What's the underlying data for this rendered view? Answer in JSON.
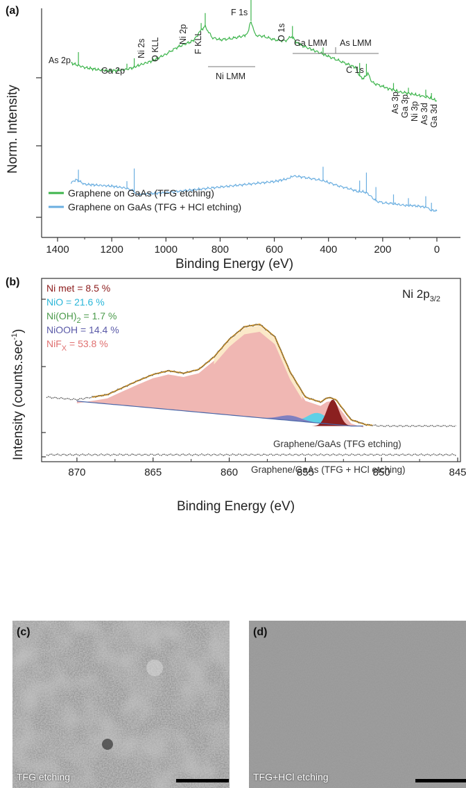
{
  "panels": {
    "a": {
      "label": "(a)",
      "ylabel": "Norm. Intensity",
      "xlabel": "Binding Energy (eV)",
      "peaks": [
        "As 2p",
        "Ga 2p",
        "Ni 2s",
        "O KLL",
        "Ni 2p",
        "F KLL",
        "F 1s",
        "O 1s",
        "Ga LMM",
        "As LMM",
        "Ni LMM",
        "C 1s",
        "As 3p",
        "Ga 3p",
        "Ni 3p",
        "As 3d",
        "Ga 3d"
      ],
      "legend": [
        "Graphene on GaAs (TFG etching)",
        "Graphene on GaAs (TFG + HCl etching)"
      ]
    },
    "b": {
      "label": "(b)",
      "ylabel": "Intensity (counts.sec",
      "ylabel_sup": "-1",
      "ylabel_end": ")",
      "xlabel": "Binding Energy (eV)",
      "region_main": "Ni 2p",
      "region_sub": "3/2",
      "components": [
        {
          "pre": "Ni met = 8.5 %",
          "sub": "",
          "post": "",
          "color": "#8b1a1a"
        },
        {
          "pre": "NiO = 21.6 %",
          "sub": "",
          "post": "",
          "color": "#29b6d8"
        },
        {
          "pre": "Ni(OH)",
          "sub": "2",
          "post": " = 1.7 %",
          "color": "#4a9a4a"
        },
        {
          "pre": "NiOOH  = 14.4 %",
          "sub": "",
          "post": "",
          "color": "#5a5aa8"
        },
        {
          "pre": "NiF",
          "sub": "X",
          "post": " = 53.8 %",
          "color": "#e07070"
        }
      ],
      "samples": [
        "Graphene/GaAs (TFG etching)",
        "Graphene/GaAs (TFG + HCl etching)"
      ]
    },
    "c": {
      "label": "(c)",
      "caption": "TFG etching"
    },
    "d": {
      "label": "(d)",
      "caption": "TFG+HCl etching"
    }
  },
  "chart_data": [
    {
      "type": "line",
      "xlabel": "Binding Energy (eV)",
      "ylabel": "Norm. Intensity",
      "xlim": [
        1400,
        0
      ],
      "xticks": [
        1400,
        1200,
        1000,
        800,
        600,
        400,
        200,
        0
      ],
      "colors": {
        "tfg": "#3cb44b",
        "hcl": "#6aaee0"
      },
      "series": [
        {
          "name": "Graphene on GaAs (TFG etching)",
          "x": [
            1350,
            1300,
            1250,
            1200,
            1150,
            1120,
            1100,
            1050,
            1000,
            960,
            900,
            880,
            870,
            855,
            830,
            800,
            760,
            720,
            700,
            686,
            670,
            640,
            600,
            560,
            535,
            520,
            500,
            470,
            450,
            420,
            400,
            360,
            320,
            300,
            285,
            270,
            255,
            240,
            225,
            200,
            180,
            160,
            140,
            110,
            90,
            70,
            50,
            40,
            20,
            0
          ],
          "y": [
            0.62,
            0.58,
            0.56,
            0.55,
            0.56,
            0.58,
            0.6,
            0.64,
            0.7,
            0.76,
            0.82,
            0.88,
            0.92,
            0.95,
            0.85,
            0.83,
            0.84,
            0.86,
            0.88,
            1.0,
            0.87,
            0.86,
            0.83,
            0.82,
            0.86,
            0.81,
            0.78,
            0.75,
            0.73,
            0.7,
            0.68,
            0.64,
            0.6,
            0.58,
            0.5,
            0.48,
            0.53,
            0.45,
            0.43,
            0.41,
            0.39,
            0.38,
            0.36,
            0.35,
            0.34,
            0.33,
            0.32,
            0.32,
            0.3,
            0.28
          ]
        },
        {
          "name": "Graphene on GaAs (TFG + HCl etching)",
          "x": [
            1350,
            1330,
            1300,
            1250,
            1200,
            1150,
            1120,
            1110,
            1100,
            1050,
            1000,
            900,
            800,
            700,
            600,
            550,
            530,
            500,
            460,
            420,
            400,
            360,
            320,
            290,
            270,
            255,
            240,
            225,
            200,
            160,
            140,
            110,
            90,
            60,
            40,
            30,
            20,
            0
          ],
          "y": [
            0.34,
            0.37,
            0.32,
            0.31,
            0.3,
            0.28,
            0.25,
            0.22,
            0.21,
            0.22,
            0.23,
            0.26,
            0.29,
            0.32,
            0.35,
            0.38,
            0.41,
            0.4,
            0.38,
            0.36,
            0.34,
            0.3,
            0.27,
            0.24,
            0.24,
            0.22,
            0.18,
            0.14,
            0.12,
            0.11,
            0.1,
            0.09,
            0.09,
            0.08,
            0.07,
            0.06,
            0.04,
            0.03
          ]
        }
      ]
    },
    {
      "type": "line",
      "xlabel": "Binding Energy (eV)",
      "ylabel": "Intensity (counts.sec-1)",
      "xlim": [
        872,
        845
      ],
      "xticks": [
        870,
        865,
        860,
        855,
        850,
        845
      ],
      "colors": {
        "envelope": "#e6a020",
        "data": "#555555",
        "background": "#4a66a8"
      },
      "series": [
        {
          "name": "Graphene/GaAs (TFG etching)",
          "x": [
            872,
            870,
            868,
            866,
            865,
            864,
            863,
            862,
            861,
            860,
            859,
            858,
            857,
            856,
            855,
            854,
            853.5,
            853,
            852,
            851,
            850,
            848,
            846,
            845
          ],
          "y": [
            0.42,
            0.4,
            0.44,
            0.55,
            0.6,
            0.63,
            0.61,
            0.64,
            0.74,
            0.88,
            0.98,
            1.0,
            0.9,
            0.62,
            0.42,
            0.38,
            0.42,
            0.4,
            0.24,
            0.2,
            0.19,
            0.19,
            0.19,
            0.19
          ]
        },
        {
          "name": "Graphene/GaAs (TFG + HCl etching)",
          "x": [
            872,
            860,
            850,
            845
          ],
          "y": [
            0.08,
            0.08,
            0.08,
            0.08
          ]
        }
      ],
      "components": [
        {
          "name": "Ni met",
          "percent": 8.5
        },
        {
          "name": "NiO",
          "percent": 21.6
        },
        {
          "name": "Ni(OH)2",
          "percent": 1.7
        },
        {
          "name": "NiOOH",
          "percent": 14.4
        },
        {
          "name": "NiFX",
          "percent": 53.8
        }
      ]
    }
  ]
}
